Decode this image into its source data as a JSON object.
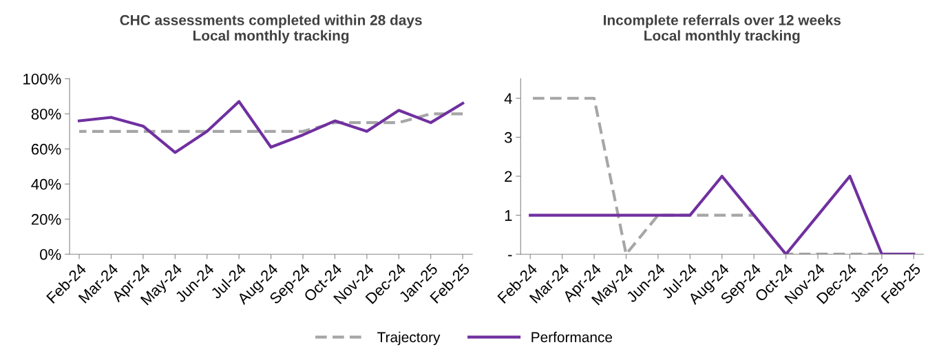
{
  "chart_data": [
    {
      "type": "line",
      "title": "CHC assessments completed within 28 days\nLocal monthly tracking",
      "categories": [
        "Feb-24",
        "Mar-24",
        "Apr-24",
        "May-24",
        "Jun-24",
        "Jul-24",
        "Aug-24",
        "Sep-24",
        "Oct-24",
        "Nov-24",
        "Dec-24",
        "Jan-25",
        "Feb-25"
      ],
      "ylim": [
        0,
        100
      ],
      "yticks": [
        {
          "value": 0,
          "label": "0%"
        },
        {
          "value": 20,
          "label": "20%"
        },
        {
          "value": 40,
          "label": "40%"
        },
        {
          "value": 60,
          "label": "60%"
        },
        {
          "value": 80,
          "label": "80%"
        },
        {
          "value": 100,
          "label": "100%"
        }
      ],
      "grid": false,
      "legend": "bottom",
      "marker": "none",
      "series": [
        {
          "name": "Trajectory",
          "color": "#a6a6a6",
          "line_style": "dashed",
          "values": [
            70,
            70,
            70,
            70,
            70,
            70,
            70,
            70,
            75,
            75,
            75,
            80,
            80
          ]
        },
        {
          "name": "Performance",
          "color": "#7030a0",
          "line_style": "solid",
          "values": [
            76,
            78,
            73,
            58,
            70,
            87,
            61,
            68,
            76,
            70,
            82,
            75,
            86
          ]
        }
      ]
    },
    {
      "type": "line",
      "title": "Incomplete referrals over 12 weeks\nLocal monthly tracking",
      "categories": [
        "Feb-24",
        "Mar-24",
        "Apr-24",
        "May-24",
        "Jun-24",
        "Jul-24",
        "Aug-24",
        "Sep-24",
        "Oct-24",
        "Nov-24",
        "Dec-24",
        "Jan-25",
        "Feb-25"
      ],
      "ylim": [
        0,
        4.5
      ],
      "yticks": [
        {
          "value": 0,
          "label": "-"
        },
        1,
        2,
        3,
        4
      ],
      "grid": false,
      "legend": "bottom",
      "marker": "none",
      "series": [
        {
          "name": "Trajectory",
          "color": "#a6a6a6",
          "line_style": "dashed",
          "values": [
            4,
            4,
            4,
            0,
            1,
            1,
            1,
            1,
            0,
            0,
            0,
            0,
            0
          ]
        },
        {
          "name": "Performance",
          "color": "#7030a0",
          "line_style": "solid",
          "values": [
            1,
            1,
            1,
            1,
            1,
            1,
            2,
            1,
            0,
            1,
            2,
            0,
            0
          ]
        }
      ]
    }
  ]
}
